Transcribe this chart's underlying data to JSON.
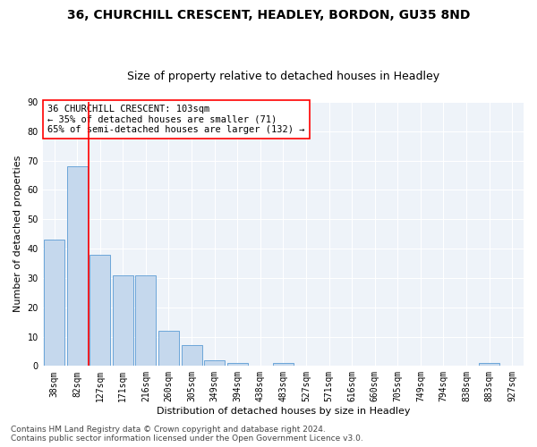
{
  "title1": "36, CHURCHILL CRESCENT, HEADLEY, BORDON, GU35 8ND",
  "title2": "Size of property relative to detached houses in Headley",
  "xlabel": "Distribution of detached houses by size in Headley",
  "ylabel": "Number of detached properties",
  "bar_labels": [
    "38sqm",
    "82sqm",
    "127sqm",
    "171sqm",
    "216sqm",
    "260sqm",
    "305sqm",
    "349sqm",
    "394sqm",
    "438sqm",
    "483sqm",
    "527sqm",
    "571sqm",
    "616sqm",
    "660sqm",
    "705sqm",
    "749sqm",
    "794sqm",
    "838sqm",
    "883sqm",
    "927sqm"
  ],
  "bar_values": [
    43,
    68,
    38,
    31,
    31,
    12,
    7,
    2,
    1,
    0,
    1,
    0,
    0,
    0,
    0,
    0,
    0,
    0,
    0,
    1,
    0
  ],
  "bar_color": "#c5d8ed",
  "bar_edge_color": "#5b9bd5",
  "vline_x": 1.5,
  "vline_color": "red",
  "annotation_text": "36 CHURCHILL CRESCENT: 103sqm\n← 35% of detached houses are smaller (71)\n65% of semi-detached houses are larger (132) →",
  "annotation_box_color": "white",
  "annotation_box_edge": "red",
  "ylim": [
    0,
    90
  ],
  "yticks": [
    0,
    10,
    20,
    30,
    40,
    50,
    60,
    70,
    80,
    90
  ],
  "footer1": "Contains HM Land Registry data © Crown copyright and database right 2024.",
  "footer2": "Contains public sector information licensed under the Open Government Licence v3.0.",
  "background_color": "#eef3f9",
  "grid_color": "white",
  "title1_fontsize": 10,
  "title2_fontsize": 9,
  "axis_label_fontsize": 8,
  "tick_fontsize": 7,
  "annotation_fontsize": 7.5,
  "footer_fontsize": 6.5
}
